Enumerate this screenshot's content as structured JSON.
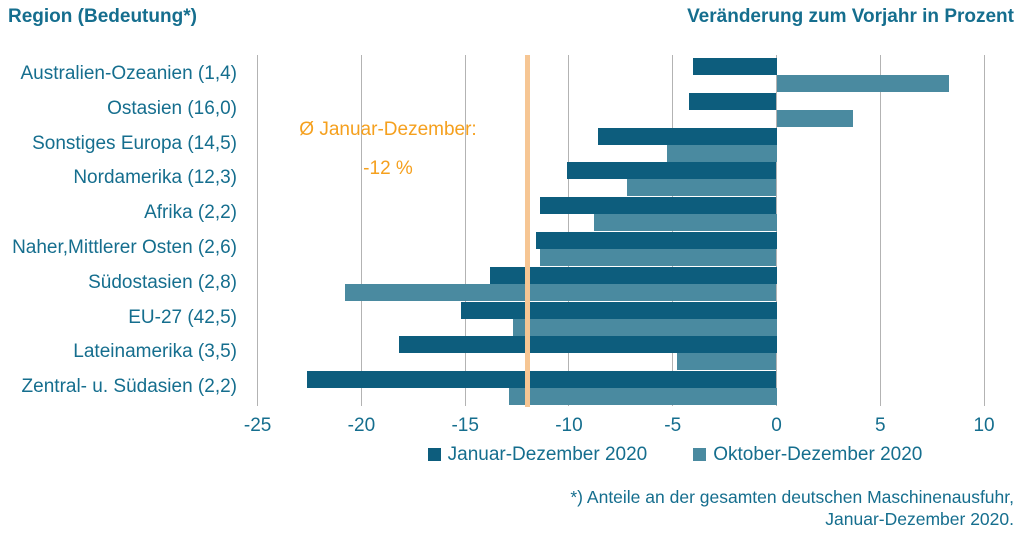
{
  "header": {
    "left_title": "Region (Bedeutung*)",
    "right_title": "Veränderung zum Vorjahr in Prozent"
  },
  "chart_data": {
    "type": "bar",
    "orientation": "horizontal",
    "title": "Veränderung zum Vorjahr in Prozent",
    "categories": [
      "Australien-Ozeanien (1,4)",
      "Ostasien (16,0)",
      "Sonstiges Europa (14,5)",
      "Nordamerika (12,3)",
      "Afrika (2,2)",
      "Naher,Mittlerer Osten (2,6)",
      "Südostasien (2,8)",
      "EU-27 (42,5)",
      "Lateinamerika (3,5)",
      "Zentral- u. Südasien (2,2)"
    ],
    "series": [
      {
        "name": "Januar-Dezember 2020",
        "color": "#0d5d7d",
        "values": [
          -4.0,
          -4.2,
          -8.6,
          -10.1,
          -11.4,
          -11.6,
          -13.8,
          -15.2,
          -18.2,
          -22.6
        ]
      },
      {
        "name": "Oktober-Dezember 2020",
        "color": "#4a8aa0",
        "values": [
          8.3,
          3.7,
          -5.3,
          -7.2,
          -8.8,
          -11.4,
          -20.8,
          -12.7,
          -4.8,
          -12.9
        ]
      }
    ],
    "xlim": [
      -25.85,
      11.25
    ],
    "xticks": [
      -25,
      -20,
      -15,
      -10,
      -5,
      0,
      5,
      10
    ],
    "grid": true,
    "legend_position": "bottom",
    "avg_line": {
      "value": -12,
      "label_line1": "Ø Januar-Dezember:",
      "label_line2": "-12 %"
    }
  },
  "footnote": {
    "line1": "*) Anteile an der gesamten deutschen Maschinenausfuhr,",
    "line2": "Januar-Dezember 2020."
  },
  "colors": {
    "text_teal": "#156e8e",
    "bar_dark": "#0d5d7d",
    "bar_light": "#4a8aa0",
    "gridline": "#b3b3b3",
    "avg_line": "#f6c694",
    "avg_text": "#f5a01e"
  }
}
